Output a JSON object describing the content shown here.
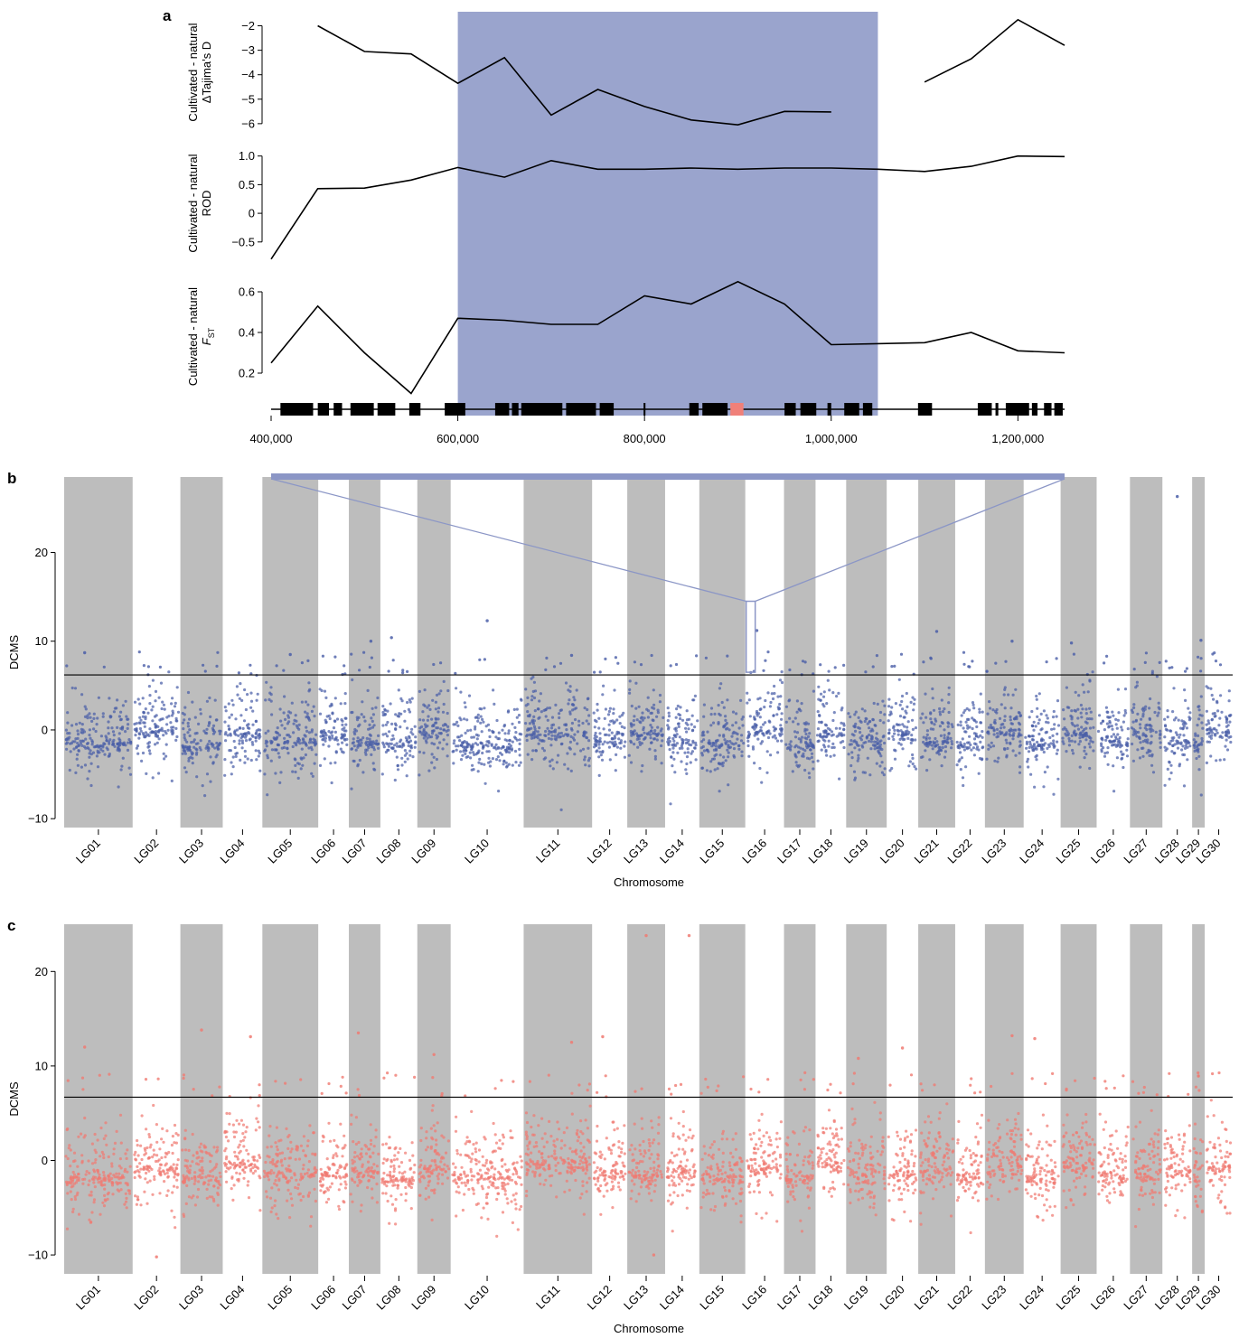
{
  "panel_labels": {
    "a": "a",
    "b": "b",
    "c": "c"
  },
  "chart_data": [
    {
      "panel": "a",
      "type": "line",
      "title": "",
      "x_ticks": [
        400000,
        600000,
        800000,
        1000000,
        1200000
      ],
      "x_tick_labels": [
        "400,000",
        "600,000",
        "800,000",
        "1,000,000",
        "1,200,000"
      ],
      "xlim": [
        400000,
        1250000
      ],
      "highlight_region": [
        600000,
        1050000
      ],
      "highlight_color": "#9aa4cd",
      "subplots": [
        {
          "ylabel_lines": [
            "Cultivated - natural",
            "ΔTajima’s D"
          ],
          "ylim": [
            -6.3,
            -1.5
          ],
          "y_ticks": [
            -2,
            -3,
            -4,
            -5,
            -6
          ],
          "y_tick_labels": [
            "−2",
            "−3",
            "−4",
            "−5",
            "−6"
          ],
          "segments": [
            {
              "x": [
                450000,
                500000,
                550000,
                600000,
                650000,
                700000,
                750000,
                800000,
                850000,
                900000,
                950000,
                1000000
              ],
              "y": [
                -2.0,
                -3.05,
                -3.15,
                -4.35,
                -3.3,
                -5.65,
                -4.6,
                -5.3,
                -5.85,
                -6.05,
                -5.5,
                -5.52
              ]
            },
            {
              "x": [
                1100000,
                1150000,
                1200000,
                1250000
              ],
              "y": [
                -4.3,
                -3.35,
                -1.75,
                -2.8
              ]
            }
          ]
        },
        {
          "ylabel_lines": [
            "Cultivated - natural",
            "ROD"
          ],
          "ylim": [
            -0.85,
            1.2
          ],
          "y_ticks": [
            1.0,
            0.5,
            0,
            -0.5
          ],
          "y_tick_labels": [
            "1.0",
            "0.5",
            "0",
            "−0.5"
          ],
          "segments": [
            {
              "x": [
                400000,
                450000,
                500000,
                550000,
                600000,
                650000,
                700000,
                750000,
                800000,
                850000,
                900000,
                950000,
                1000000,
                1050000,
                1100000,
                1150000,
                1200000,
                1250000
              ],
              "y": [
                -0.8,
                0.43,
                0.44,
                0.58,
                0.8,
                0.63,
                0.92,
                0.77,
                0.77,
                0.79,
                0.77,
                0.79,
                0.79,
                0.77,
                0.73,
                0.82,
                1.0,
                0.99
              ]
            }
          ]
        },
        {
          "ylabel_lines": [
            "Cultivated - natural",
            "F"
          ],
          "ylabel_sub": "ST",
          "ylim": [
            0.08,
            0.68
          ],
          "y_ticks": [
            0.6,
            0.4,
            0.2
          ],
          "y_tick_labels": [
            "0.6",
            "0.4",
            "0.2"
          ],
          "segments": [
            {
              "x": [
                400000,
                450000,
                500000,
                550000,
                600000,
                650000,
                700000,
                750000,
                800000,
                850000,
                900000,
                950000,
                1000000,
                1100000,
                1150000,
                1200000,
                1250000
              ],
              "y": [
                0.25,
                0.53,
                0.3,
                0.1,
                0.47,
                0.46,
                0.44,
                0.44,
                0.58,
                0.54,
                0.65,
                0.54,
                0.34,
                0.35,
                0.4,
                0.31,
                0.3
              ]
            }
          ]
        }
      ],
      "gene_track": {
        "genes": [
          [
            410000,
            445000
          ],
          [
            450000,
            462000
          ],
          [
            467000,
            476000
          ],
          [
            485000,
            510000
          ],
          [
            514000,
            533000
          ],
          [
            548000,
            560000
          ],
          [
            586000,
            608000
          ],
          [
            640000,
            655000
          ],
          [
            658000,
            665000
          ],
          [
            668000,
            712000
          ],
          [
            716000,
            748000
          ],
          [
            752000,
            767000
          ],
          [
            799000,
            801000
          ],
          [
            848000,
            858000
          ],
          [
            862000,
            889000
          ],
          [
            950000,
            962000
          ],
          [
            967000,
            984000
          ],
          [
            996000,
            1000000
          ],
          [
            1014000,
            1030000
          ],
          [
            1034000,
            1044000
          ],
          [
            1093000,
            1108000
          ],
          [
            1157000,
            1172000
          ],
          [
            1176000,
            1179000
          ],
          [
            1187000,
            1212000
          ],
          [
            1215000,
            1221000
          ],
          [
            1228000,
            1236000
          ],
          [
            1239000,
            1248000
          ]
        ],
        "highlight_gene": [
          892000,
          906000
        ],
        "gene_color": "#000000",
        "highlight_gene_color": "#f08079"
      }
    },
    {
      "panel": "b",
      "type": "scatter",
      "ylabel": "DCMS",
      "xlabel": "Chromosome",
      "ylim": [
        -11,
        28.5
      ],
      "y_ticks": [
        -10,
        0,
        10,
        20
      ],
      "y_tick_labels": [
        "−10",
        "0",
        "10",
        "20"
      ],
      "threshold": 6.2,
      "point_color": "#4a5ea8",
      "zoom_callout": {
        "chromosome": "LG16",
        "y_range": [
          6.5,
          14.5
        ]
      },
      "outliers": [
        {
          "chromosome": "LG01",
          "y": 8.7
        },
        {
          "chromosome": "LG05",
          "y": 8.5
        },
        {
          "chromosome": "LG07",
          "y": 10.0
        },
        {
          "chromosome": "LG08",
          "y": 10.4
        },
        {
          "chromosome": "LG10",
          "y": 12.3
        },
        {
          "chromosome": "LG11",
          "y": 8.4
        },
        {
          "chromosome": "LG16",
          "y": 11.2
        },
        {
          "chromosome": "LG21",
          "y": 11.1
        },
        {
          "chromosome": "LG23",
          "y": 10.0
        },
        {
          "chromosome": "LG25",
          "y": 9.8
        },
        {
          "chromosome": "LG28",
          "y": 26.3
        },
        {
          "chromosome": "LG29",
          "y": 10.1
        }
      ]
    },
    {
      "panel": "c",
      "type": "scatter",
      "ylabel": "DCMS",
      "xlabel": "Chromosome",
      "ylim": [
        -12,
        25
      ],
      "y_ticks": [
        -10,
        0,
        10,
        20
      ],
      "y_tick_labels": [
        "−10",
        "0",
        "10",
        "20"
      ],
      "threshold": 6.7,
      "point_color": "#f07a72",
      "outliers": [
        {
          "chromosome": "LG01",
          "y": 12.0
        },
        {
          "chromosome": "LG03",
          "y": 13.8
        },
        {
          "chromosome": "LG04",
          "y": 13.1
        },
        {
          "chromosome": "LG07",
          "y": 13.5
        },
        {
          "chromosome": "LG09",
          "y": 11.2
        },
        {
          "chromosome": "LG11",
          "y": 12.5
        },
        {
          "chromosome": "LG12",
          "y": 13.1
        },
        {
          "chromosome": "LG13",
          "y": 23.8
        },
        {
          "chromosome": "LG14",
          "y": 23.8
        },
        {
          "chromosome": "LG19",
          "y": 10.8
        },
        {
          "chromosome": "LG20",
          "y": 11.9
        },
        {
          "chromosome": "LG23",
          "y": 13.2
        },
        {
          "chromosome": "LG24",
          "y": 12.9
        },
        {
          "chromosome": "LG02",
          "y": -10.2
        },
        {
          "chromosome": "LG13",
          "y": -10.0
        }
      ]
    }
  ],
  "chromosomes": [
    "LG01",
    "LG02",
    "LG03",
    "LG04",
    "LG05",
    "LG06",
    "LG07",
    "LG08",
    "LG09",
    "LG10",
    "LG11",
    "LG12",
    "LG13",
    "LG14",
    "LG15",
    "LG16",
    "LG17",
    "LG18",
    "LG19",
    "LG20",
    "LG21",
    "LG22",
    "LG23",
    "LG24",
    "LG25",
    "LG26",
    "LG27",
    "LG28",
    "LG29",
    "LG30"
  ],
  "colors": {
    "band": "#bdbdbd",
    "highlight": "#9aa4cd",
    "callout": "#8b96c6"
  }
}
